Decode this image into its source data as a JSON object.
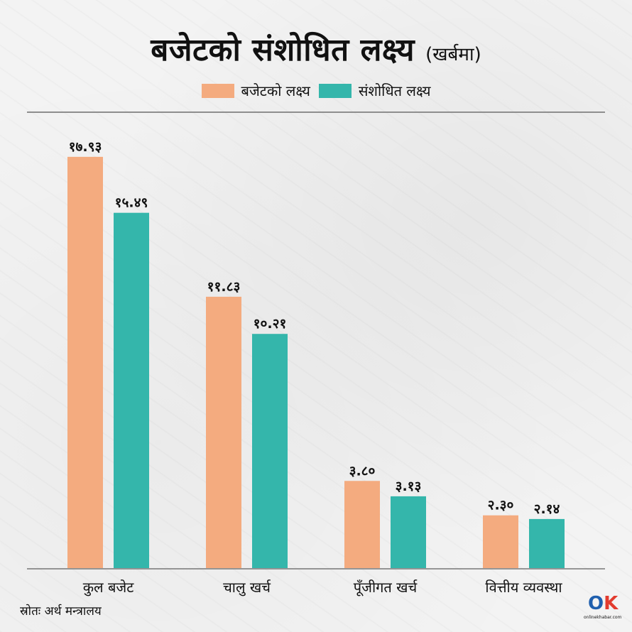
{
  "title": "बजेटको संशोधित लक्ष्य",
  "title_unit": "(खर्बमा)",
  "colors": {
    "budget": "#f4ab7f",
    "revised": "#34b6ab"
  },
  "chart_data": {
    "type": "bar",
    "categories": [
      "कुल बजेट",
      "चालु खर्च",
      "पूँजीगत खर्च",
      "वित्तीय व्यवस्था"
    ],
    "series": [
      {
        "name": "बजेटको लक्ष्य",
        "values": [
          17.93,
          11.83,
          3.8,
          2.3
        ],
        "labels": [
          "१७.९३",
          "११.८३",
          "३.८०",
          "२.३०"
        ]
      },
      {
        "name": "संशोधित लक्ष्य",
        "values": [
          15.49,
          10.21,
          3.13,
          2.14
        ],
        "labels": [
          "१५.४९",
          "१०.२१",
          "३.१३",
          "२.१४"
        ]
      }
    ],
    "ylim": [
      0,
      18
    ],
    "legend_position": "top-center",
    "grid": false
  },
  "source": "स्रोतः अर्थ मन्त्रालय",
  "logo": {
    "text": "onlinekhabar.com"
  }
}
